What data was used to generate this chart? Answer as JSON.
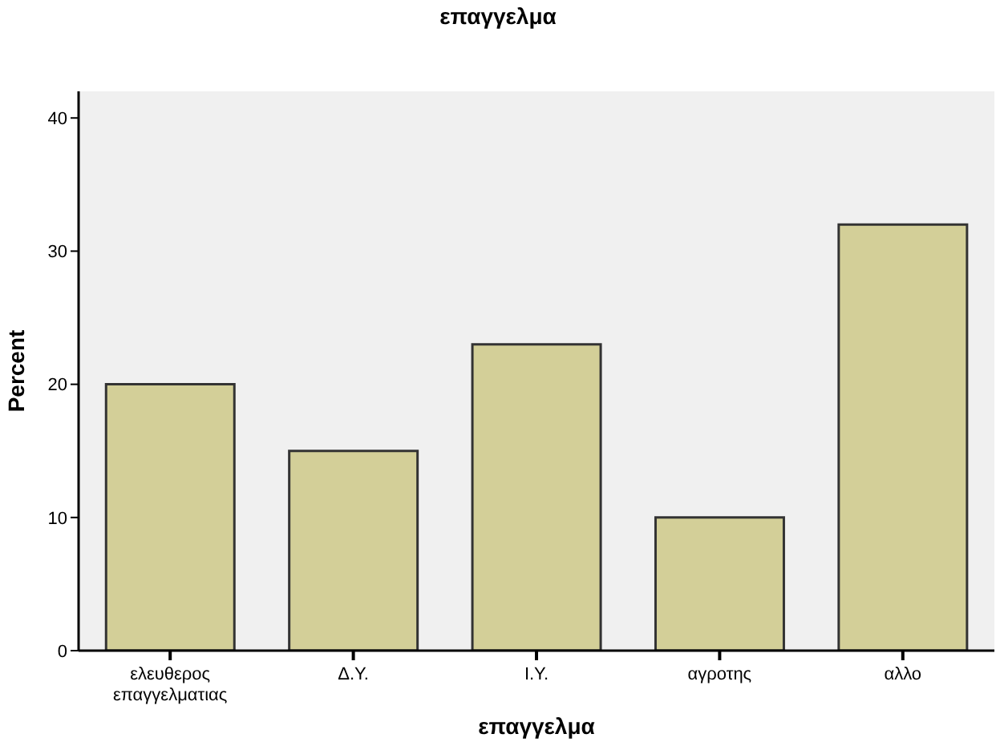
{
  "chart_data": {
    "type": "bar",
    "title": "επαγγελμα",
    "xlabel": "επαγγελμα",
    "ylabel": "Percent",
    "categories": [
      "ελευθερος επαγγελματιας",
      "Δ.Υ.",
      "Ι.Υ.",
      "αγροτης",
      "αλλο"
    ],
    "values": [
      20,
      15,
      23,
      10,
      32
    ],
    "color": "#d3cf98",
    "ylim": [
      0,
      42
    ],
    "yticks": [
      0,
      10,
      20,
      30,
      40
    ],
    "grid": false,
    "legend": false
  }
}
